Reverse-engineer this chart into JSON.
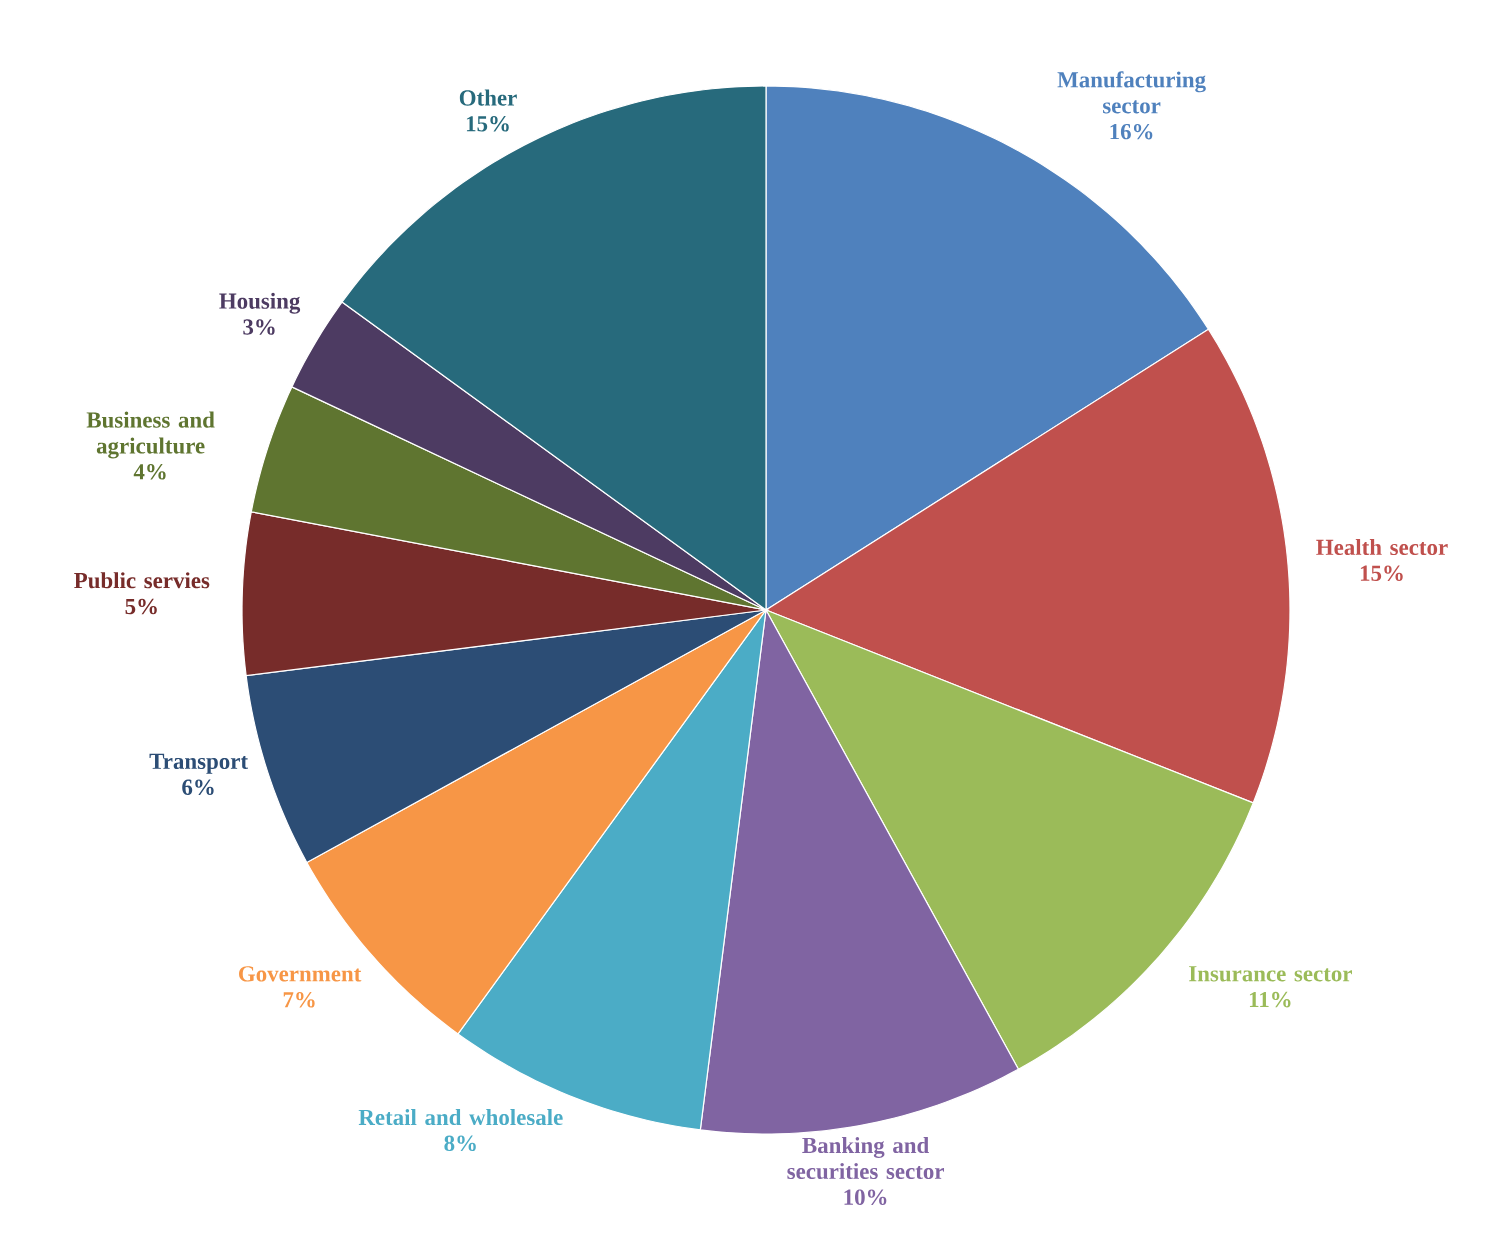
{
  "chart_data": {
    "type": "pie",
    "categories": [
      "Manufacturing sector",
      "Health sector",
      "Insurance sector",
      "Banking and securities sector",
      "Retail and wholesale",
      "Government",
      "Transport",
      "Public servies",
      "Business and agriculture",
      "Housing",
      "Other"
    ],
    "values": [
      16,
      15,
      11,
      10,
      8,
      7,
      6,
      5,
      4,
      3,
      15
    ],
    "value_labels": [
      "16%",
      "15%",
      "11%",
      "10%",
      "8%",
      "7%",
      "6%",
      "5%",
      "4%",
      "3%",
      "15%"
    ],
    "colors": [
      "#4f81bd",
      "#c0504d",
      "#9bbb59",
      "#8064a2",
      "#4bacc6",
      "#f79646",
      "#2c4d75",
      "#772c2a",
      "#5f7530",
      "#4d3b62",
      "#276a7c"
    ]
  }
}
